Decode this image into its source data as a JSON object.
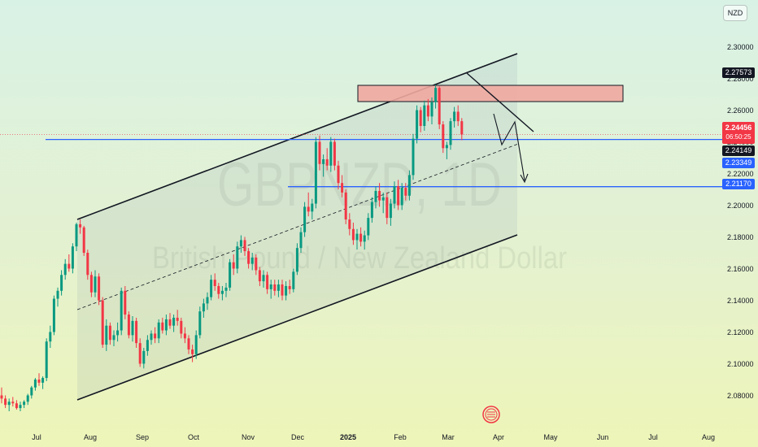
{
  "chart_data": {
    "type": "candlestick",
    "watermark_symbol": "GBPNZD, 1D",
    "watermark_name": "British Pound / New Zealand Dollar",
    "currency": "NZD",
    "ylim": [
      2.07,
      2.31
    ],
    "y_ticks": [
      "2.30000",
      "2.28000",
      "2.26000",
      "2.24000",
      "2.22000",
      "2.20000",
      "2.18000",
      "2.16000",
      "2.14000",
      "2.12000",
      "2.10000",
      "2.08000"
    ],
    "x_ticks": [
      "Jul",
      "Aug",
      "Sep",
      "Oct",
      "Nov",
      "Dec",
      "2025",
      "Feb",
      "Mar",
      "Apr",
      "May",
      "Jun",
      "Jul",
      "Aug"
    ],
    "price_tags": {
      "current": "2.24456",
      "timer": "06:50:25",
      "recent_high": "2.27573",
      "support": "2.24149",
      "level_a": "2.23349",
      "level_b": "2.21170"
    },
    "colors": {
      "up": "#089981",
      "down": "#f23645",
      "level_line": "#2962ff",
      "zone": "#f0a8a0"
    },
    "ohlc": [
      [
        2.08,
        2.085,
        2.075,
        2.078
      ],
      [
        2.078,
        2.08,
        2.072,
        2.074
      ],
      [
        2.074,
        2.078,
        2.07,
        2.076
      ],
      [
        2.076,
        2.079,
        2.073,
        2.075
      ],
      [
        2.075,
        2.077,
        2.071,
        2.072
      ],
      [
        2.072,
        2.076,
        2.07,
        2.074
      ],
      [
        2.074,
        2.077,
        2.072,
        2.076
      ],
      [
        2.076,
        2.081,
        2.074,
        2.08
      ],
      [
        2.08,
        2.086,
        2.078,
        2.085
      ],
      [
        2.085,
        2.091,
        2.083,
        2.09
      ],
      [
        2.09,
        2.094,
        2.086,
        2.088
      ],
      [
        2.088,
        2.092,
        2.084,
        2.091
      ],
      [
        2.091,
        2.116,
        2.089,
        2.114
      ],
      [
        2.114,
        2.124,
        2.11,
        2.12
      ],
      [
        2.12,
        2.143,
        2.118,
        2.141
      ],
      [
        2.141,
        2.148,
        2.136,
        2.146
      ],
      [
        2.146,
        2.159,
        2.143,
        2.156
      ],
      [
        2.156,
        2.166,
        2.153,
        2.163
      ],
      [
        2.163,
        2.169,
        2.158,
        2.16
      ],
      [
        2.16,
        2.176,
        2.157,
        2.174
      ],
      [
        2.174,
        2.189,
        2.171,
        2.188
      ],
      [
        2.188,
        2.191,
        2.182,
        2.186
      ],
      [
        2.186,
        2.187,
        2.168,
        2.17
      ],
      [
        2.17,
        2.172,
        2.153,
        2.156
      ],
      [
        2.156,
        2.158,
        2.142,
        2.145
      ],
      [
        2.145,
        2.159,
        2.142,
        2.155
      ],
      [
        2.155,
        2.157,
        2.137,
        2.14
      ],
      [
        2.14,
        2.142,
        2.11,
        2.112
      ],
      [
        2.112,
        2.128,
        2.108,
        2.124
      ],
      [
        2.124,
        2.126,
        2.112,
        2.115
      ],
      [
        2.115,
        2.121,
        2.111,
        2.118
      ],
      [
        2.118,
        2.126,
        2.114,
        2.121
      ],
      [
        2.121,
        2.148,
        2.118,
        2.146
      ],
      [
        2.146,
        2.149,
        2.128,
        2.131
      ],
      [
        2.131,
        2.133,
        2.116,
        2.118
      ],
      [
        2.118,
        2.13,
        2.114,
        2.127
      ],
      [
        2.127,
        2.129,
        2.11,
        2.113
      ],
      [
        2.113,
        2.116,
        2.098,
        2.1
      ],
      [
        2.1,
        2.11,
        2.097,
        2.108
      ],
      [
        2.108,
        2.118,
        2.105,
        2.115
      ],
      [
        2.115,
        2.121,
        2.112,
        2.119
      ],
      [
        2.119,
        2.123,
        2.113,
        2.116
      ],
      [
        2.116,
        2.128,
        2.113,
        2.126
      ],
      [
        2.126,
        2.129,
        2.119,
        2.121
      ],
      [
        2.121,
        2.131,
        2.118,
        2.128
      ],
      [
        2.128,
        2.132,
        2.122,
        2.124
      ],
      [
        2.124,
        2.131,
        2.12,
        2.129
      ],
      [
        2.129,
        2.134,
        2.124,
        2.127
      ],
      [
        2.127,
        2.129,
        2.116,
        2.119
      ],
      [
        2.119,
        2.123,
        2.113,
        2.116
      ],
      [
        2.116,
        2.118,
        2.106,
        2.109
      ],
      [
        2.109,
        2.112,
        2.101,
        2.106
      ],
      [
        2.106,
        2.121,
        2.103,
        2.118
      ],
      [
        2.118,
        2.136,
        2.116,
        2.133
      ],
      [
        2.133,
        2.141,
        2.129,
        2.138
      ],
      [
        2.138,
        2.145,
        2.134,
        2.142
      ],
      [
        2.142,
        2.156,
        2.14,
        2.153
      ],
      [
        2.153,
        2.157,
        2.146,
        2.149
      ],
      [
        2.149,
        2.151,
        2.141,
        2.144
      ],
      [
        2.144,
        2.149,
        2.14,
        2.146
      ],
      [
        2.146,
        2.151,
        2.142,
        2.148
      ],
      [
        2.148,
        2.166,
        2.146,
        2.164
      ],
      [
        2.164,
        2.169,
        2.156,
        2.16
      ],
      [
        2.16,
        2.177,
        2.157,
        2.174
      ],
      [
        2.174,
        2.181,
        2.17,
        2.178
      ],
      [
        2.178,
        2.18,
        2.168,
        2.171
      ],
      [
        2.171,
        2.173,
        2.16,
        2.163
      ],
      [
        2.163,
        2.17,
        2.159,
        2.167
      ],
      [
        2.167,
        2.169,
        2.156,
        2.159
      ],
      [
        2.159,
        2.161,
        2.149,
        2.152
      ],
      [
        2.152,
        2.159,
        2.148,
        2.156
      ],
      [
        2.156,
        2.158,
        2.144,
        2.147
      ],
      [
        2.147,
        2.153,
        2.141,
        2.15
      ],
      [
        2.15,
        2.153,
        2.143,
        2.146
      ],
      [
        2.146,
        2.153,
        2.142,
        2.15
      ],
      [
        2.15,
        2.153,
        2.14,
        2.143
      ],
      [
        2.143,
        2.152,
        2.14,
        2.149
      ],
      [
        2.149,
        2.153,
        2.144,
        2.147
      ],
      [
        2.147,
        2.16,
        2.145,
        2.158
      ],
      [
        2.158,
        2.176,
        2.156,
        2.173
      ],
      [
        2.173,
        2.186,
        2.17,
        2.183
      ],
      [
        2.183,
        2.202,
        2.18,
        2.199
      ],
      [
        2.199,
        2.208,
        2.193,
        2.196
      ],
      [
        2.196,
        2.204,
        2.191,
        2.201
      ],
      [
        2.201,
        2.243,
        2.198,
        2.24
      ],
      [
        2.24,
        2.244,
        2.222,
        2.226
      ],
      [
        2.226,
        2.232,
        2.218,
        2.229
      ],
      [
        2.229,
        2.236,
        2.222,
        2.225
      ],
      [
        2.225,
        2.243,
        2.221,
        2.24
      ],
      [
        2.24,
        2.242,
        2.222,
        2.225
      ],
      [
        2.225,
        2.228,
        2.21,
        2.214
      ],
      [
        2.214,
        2.219,
        2.205,
        2.208
      ],
      [
        2.208,
        2.21,
        2.188,
        2.191
      ],
      [
        2.191,
        2.195,
        2.181,
        2.185
      ],
      [
        2.185,
        2.189,
        2.175,
        2.178
      ],
      [
        2.178,
        2.185,
        2.172,
        2.182
      ],
      [
        2.182,
        2.186,
        2.174,
        2.177
      ],
      [
        2.177,
        2.184,
        2.172,
        2.181
      ],
      [
        2.181,
        2.195,
        2.178,
        2.192
      ],
      [
        2.192,
        2.205,
        2.189,
        2.202
      ],
      [
        2.202,
        2.212,
        2.198,
        2.209
      ],
      [
        2.209,
        2.214,
        2.199,
        2.203
      ],
      [
        2.203,
        2.208,
        2.195,
        2.205
      ],
      [
        2.205,
        2.208,
        2.188,
        2.192
      ],
      [
        2.192,
        2.204,
        2.187,
        2.201
      ],
      [
        2.201,
        2.215,
        2.198,
        2.212
      ],
      [
        2.212,
        2.216,
        2.197,
        2.2
      ],
      [
        2.2,
        2.214,
        2.197,
        2.211
      ],
      [
        2.211,
        2.214,
        2.203,
        2.206
      ],
      [
        2.206,
        2.222,
        2.203,
        2.219
      ],
      [
        2.219,
        2.245,
        2.216,
        2.242
      ],
      [
        2.242,
        2.263,
        2.239,
        2.26
      ],
      [
        2.26,
        2.262,
        2.246,
        2.25
      ],
      [
        2.25,
        2.266,
        2.247,
        2.263
      ],
      [
        2.263,
        2.267,
        2.253,
        2.256
      ],
      [
        2.256,
        2.268,
        2.251,
        2.265
      ],
      [
        2.265,
        2.276,
        2.261,
        2.274
      ],
      [
        2.274,
        2.275,
        2.248,
        2.251
      ],
      [
        2.251,
        2.253,
        2.233,
        2.236
      ],
      [
        2.236,
        2.24,
        2.229,
        2.238
      ],
      [
        2.238,
        2.255,
        2.235,
        2.253
      ],
      [
        2.253,
        2.262,
        2.249,
        2.259
      ],
      [
        2.259,
        2.263,
        2.25,
        2.253
      ],
      [
        2.253,
        2.255,
        2.241,
        2.2446
      ]
    ],
    "channel": {
      "upper_start": [
        0,
        2.189
      ],
      "upper_end": [
        156,
        2.283
      ],
      "lower_start": [
        0,
        2.085
      ],
      "lower_end": [
        156,
        2.181
      ]
    }
  }
}
